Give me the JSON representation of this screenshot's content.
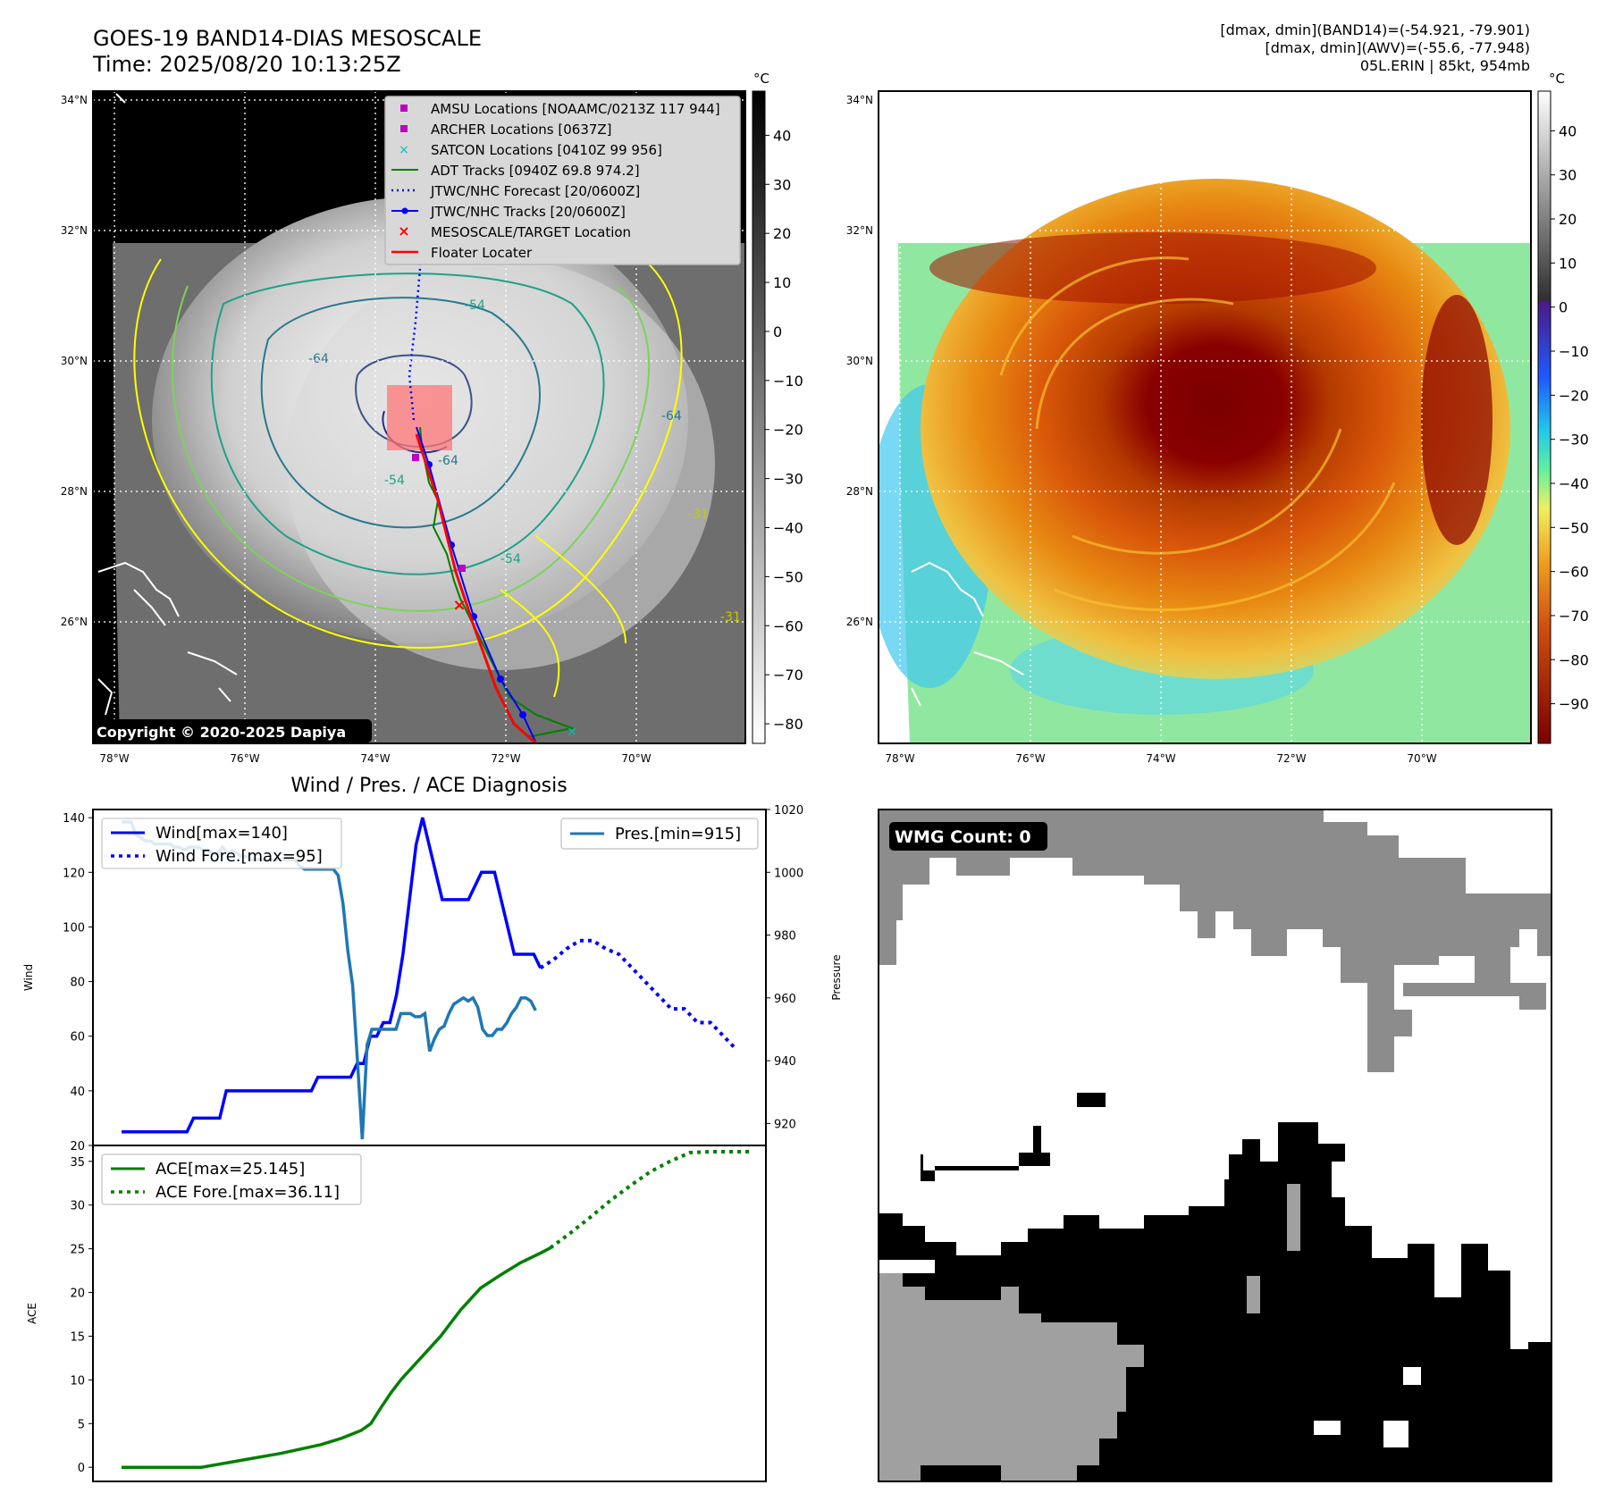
{
  "header": {
    "title": "GOES-19 BAND14-DIAS MESOSCALE",
    "time": "Time: 2025/08/20 10:13:25Z",
    "right_line1": "[dmax, dmin](BAND14)=(-54.921, -79.901)",
    "right_line2": "[dmax, dmin](AWV)=(-55.6, -77.948)",
    "right_line3": "05L.ERIN | 85kt, 954mb"
  },
  "colors": {
    "wind": "#0000ff",
    "pressure": "#1f77b4",
    "ace": "#008000",
    "adt": "#008000",
    "jtwc_forecast": "#0000ff",
    "jtwc_track": "#0000ff",
    "floater": "#ff0000",
    "target": "#ff0000",
    "amsu": "#bf00bf",
    "archer": "#bf00bf",
    "satcon": "#00bfbf",
    "coast": "#ffffff",
    "contour_fill_bright": "#ffff00",
    "contour_dark": "#2a2a8a",
    "mask_dark": "#000000",
    "mask_mid": "#a0a0a0",
    "mask_light": "#8c8c8c"
  },
  "map_panels": {
    "lat_labels": [
      "34°N",
      "32°N",
      "30°N",
      "28°N",
      "26°N"
    ],
    "lon_labels": [
      "78°W",
      "76°W",
      "74°W",
      "72°W",
      "70°W"
    ],
    "copyright": "Copyright © 2020-2025 Dapiya",
    "contour_labels": [
      "-54",
      "-64",
      "-54",
      "-64",
      "-31",
      "-64",
      "-54",
      "-31"
    ]
  },
  "legend": {
    "items": [
      "AMSU Locations [NOAAMC/0213Z 117 944]",
      "ARCHER Locations [0637Z]",
      "SATCON Locations [0410Z 99 956]",
      "ADT Tracks [0940Z 69.8 974.2]",
      "JTWC/NHC Forecast [20/0600Z]",
      "JTWC/NHC Tracks [20/0600Z]",
      "MESOSCALE/TARGET Location",
      "Floater Locater"
    ]
  },
  "colorbar_left": {
    "unit": "°C",
    "ticks": [
      "40",
      "30",
      "20",
      "10",
      "0",
      "−10",
      "−20",
      "−30",
      "−40",
      "−50",
      "−60",
      "−70",
      "−80"
    ],
    "range": [
      -84,
      49
    ]
  },
  "colorbar_right": {
    "unit": "°C",
    "ticks": [
      "40",
      "30",
      "20",
      "10",
      "0",
      "−10",
      "−20",
      "−30",
      "−40",
      "−50",
      "−60",
      "−70",
      "−80",
      "−90"
    ],
    "range": [
      -99,
      49
    ]
  },
  "wmg": {
    "label": "WMG Count: 0"
  },
  "chart_data": [
    {
      "type": "line",
      "title": "Wind / Pres. / ACE Diagnosis",
      "ylabel": "Wind",
      "y2label": "Pressure",
      "ylim": [
        20,
        143
      ],
      "y2lim": [
        913,
        1020
      ],
      "yticks": [
        20,
        40,
        60,
        80,
        100,
        120,
        140
      ],
      "y2ticks": [
        920,
        940,
        960,
        980,
        1000,
        1020
      ],
      "legend_left": [
        "Wind[max=140]",
        "Wind Fore.[max=95]"
      ],
      "legend_right": [
        "Pres.[min=915]"
      ],
      "series": [
        {
          "name": "Wind[max=140]",
          "style": "solid",
          "values": [
            25,
            25,
            25,
            25,
            25,
            25,
            25,
            25,
            25,
            25,
            25,
            30,
            30,
            30,
            30,
            30,
            40,
            40,
            40,
            40,
            40,
            40,
            40,
            40,
            40,
            40,
            40,
            40,
            40,
            40,
            45,
            45,
            45,
            45,
            45,
            45,
            50,
            50,
            60,
            60,
            65,
            65,
            75,
            90,
            110,
            130,
            140,
            130,
            120,
            110,
            110,
            110,
            110,
            110,
            115,
            120,
            120,
            120,
            110,
            100,
            90,
            90,
            90,
            90,
            85
          ]
        },
        {
          "name": "Wind Fore.[max=95]",
          "style": "dotted",
          "points": [
            [
              64,
              85
            ],
            [
              66,
              88
            ],
            [
              68,
              92
            ],
            [
              70,
              95
            ],
            [
              72,
              95
            ],
            [
              74,
              92
            ],
            [
              76,
              90
            ],
            [
              78,
              85
            ],
            [
              80,
              80
            ],
            [
              82,
              75
            ],
            [
              84,
              70
            ],
            [
              86,
              70
            ],
            [
              88,
              65
            ],
            [
              90,
              65
            ],
            [
              92,
              60
            ],
            [
              94,
              55
            ]
          ]
        },
        {
          "name": "Pres.[min=915]",
          "style": "solid",
          "values": [
            1016,
            1016,
            1016,
            1012,
            1011,
            1010,
            1010,
            1009,
            1009,
            1009,
            1009,
            1008,
            1008,
            1007,
            1008,
            1008,
            1008,
            1007,
            1007,
            1006,
            1006,
            1008,
            1006,
            1007,
            1006,
            1005,
            1005,
            1004,
            1004,
            1004,
            1004,
            1004,
            1004,
            1004,
            1004,
            1004,
            1004,
            1002,
            1001,
            1001,
            1001,
            1001,
            1001,
            1001,
            1001,
            999,
            990,
            975,
            964,
            940,
            915,
            945,
            950,
            950,
            950,
            950,
            950,
            950,
            955,
            955,
            955,
            954,
            954,
            955,
            943,
            947,
            950,
            951,
            955,
            958,
            959,
            960,
            959,
            960,
            957,
            950,
            948,
            948,
            950,
            950,
            952,
            955,
            957,
            960,
            960,
            959,
            956
          ]
        }
      ]
    },
    {
      "type": "line",
      "ylabel": "ACE",
      "ylim": [
        -1,
        36
      ],
      "yticks": [
        0,
        5,
        10,
        15,
        20,
        25,
        30,
        35
      ],
      "legend": [
        "ACE[max=25.145]",
        "ACE Fore.[max=36.11]"
      ],
      "series": [
        {
          "name": "ACE[max=25.145]",
          "style": "solid",
          "points": [
            [
              0,
              0
            ],
            [
              16,
              0
            ],
            [
              24,
              0.8
            ],
            [
              32,
              1.6
            ],
            [
              40,
              2.6
            ],
            [
              44,
              3.3
            ],
            [
              48,
              4.2
            ],
            [
              50,
              5
            ],
            [
              52,
              6.8
            ],
            [
              54,
              8.5
            ],
            [
              56,
              10
            ],
            [
              60,
              12.5
            ],
            [
              64,
              15
            ],
            [
              68,
              18
            ],
            [
              72,
              20.5
            ],
            [
              76,
              22
            ],
            [
              80,
              23.4
            ],
            [
              84,
              24.5
            ],
            [
              86,
              25.1
            ]
          ]
        },
        {
          "name": "ACE Fore.[max=36.11]",
          "style": "dotted",
          "points": [
            [
              86,
              25.1
            ],
            [
              90,
              26.8
            ],
            [
              94,
              28.6
            ],
            [
              98,
              30.5
            ],
            [
              102,
              32.2
            ],
            [
              106,
              33.8
            ],
            [
              110,
              35
            ],
            [
              114,
              36
            ],
            [
              118,
              36.1
            ],
            [
              122,
              36.1
            ],
            [
              126,
              36.11
            ]
          ]
        }
      ]
    }
  ]
}
